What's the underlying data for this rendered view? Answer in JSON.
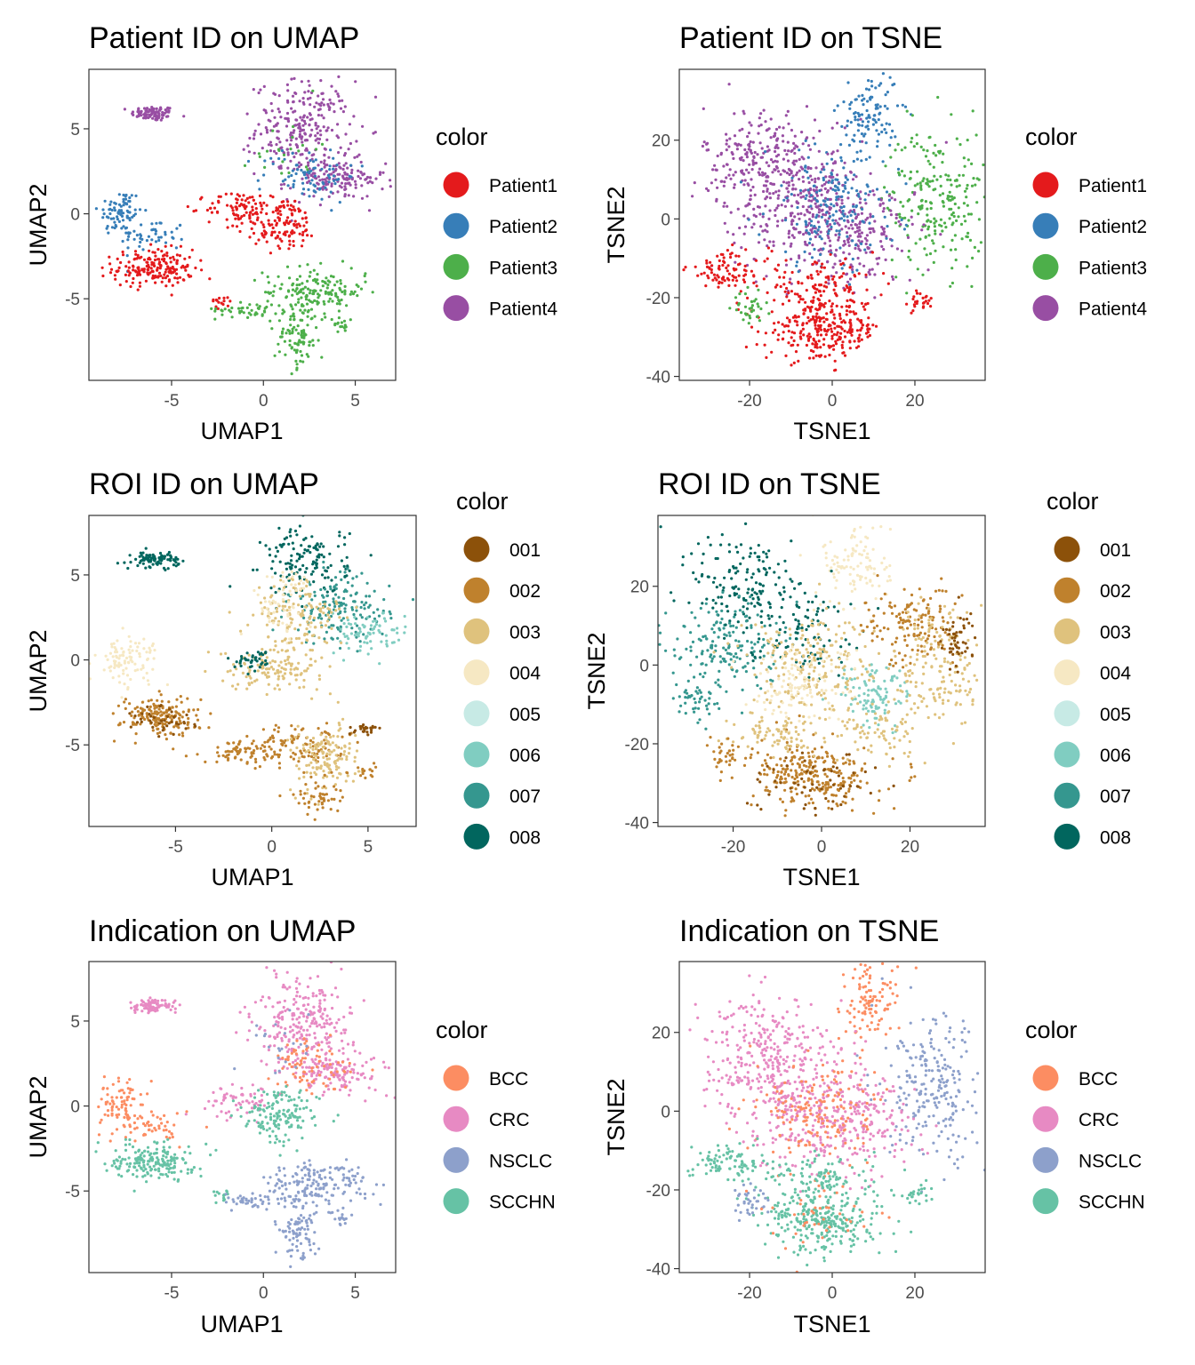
{
  "chart_data": [
    {
      "type": "scatter",
      "title": "Patient ID on UMAP",
      "xlabel": "UMAP1",
      "ylabel": "UMAP2",
      "xlim": [
        -9.5,
        7.2
      ],
      "ylim": [
        -9.8,
        8.5
      ],
      "xticks": [
        -5,
        0,
        5
      ],
      "yticks": [
        -5,
        0,
        5
      ],
      "grid": false,
      "legend": {
        "title": "color",
        "position": "right",
        "items": [
          {
            "label": "Patient1",
            "color": "#e41a1c"
          },
          {
            "label": "Patient2",
            "color": "#377eb8"
          },
          {
            "label": "Patient3",
            "color": "#4daf4a"
          },
          {
            "label": "Patient4",
            "color": "#984ea3"
          }
        ]
      },
      "clusters": [
        {
          "label": "Patient4",
          "x": -6,
          "y": 5.9,
          "sx": 0.6,
          "sy": 0.22,
          "n": 90
        },
        {
          "label": "Patient2",
          "x": -7.8,
          "y": 0.1,
          "sx": 0.6,
          "sy": 0.7,
          "n": 80
        },
        {
          "label": "Patient2",
          "x": -6,
          "y": -1.3,
          "sx": 0.9,
          "sy": 0.5,
          "n": 50
        },
        {
          "label": "Patient1",
          "x": -6,
          "y": -3.2,
          "sx": 1.1,
          "sy": 0.55,
          "n": 190
        },
        {
          "label": "Patient4",
          "x": 2.2,
          "y": 5,
          "sx": 1.3,
          "sy": 1.4,
          "n": 260
        },
        {
          "label": "Patient4",
          "x": 4,
          "y": 2,
          "sx": 1.3,
          "sy": 0.6,
          "n": 140
        },
        {
          "label": "Patient2",
          "x": 2.5,
          "y": 2.3,
          "sx": 1.3,
          "sy": 0.8,
          "n": 80
        },
        {
          "label": "Patient3",
          "x": 1.2,
          "y": 3.8,
          "sx": 0.9,
          "sy": 1,
          "n": 22
        },
        {
          "label": "Patient1",
          "x": -1.3,
          "y": 0.3,
          "sx": 0.9,
          "sy": 0.5,
          "n": 80
        },
        {
          "label": "Patient1",
          "x": 1,
          "y": -0.6,
          "sx": 1,
          "sy": 0.8,
          "n": 130
        },
        {
          "label": "Patient1",
          "x": -2.3,
          "y": -5.2,
          "sx": 0.3,
          "sy": 0.2,
          "n": 15
        },
        {
          "label": "Patient3",
          "x": -0.8,
          "y": -5.6,
          "sx": 0.9,
          "sy": 0.25,
          "n": 40
        },
        {
          "label": "Patient3",
          "x": 2.8,
          "y": -4.6,
          "sx": 1.4,
          "sy": 0.7,
          "n": 170
        },
        {
          "label": "Patient3",
          "x": 1.8,
          "y": -7.3,
          "sx": 0.6,
          "sy": 0.9,
          "n": 90
        },
        {
          "label": "Patient3",
          "x": 4.4,
          "y": -6.5,
          "sx": 0.25,
          "sy": 0.25,
          "n": 15
        }
      ]
    },
    {
      "type": "scatter",
      "title": "Patient ID on TSNE",
      "xlabel": "TSNE1",
      "ylabel": "TSNE2",
      "xlim": [
        -37,
        37
      ],
      "ylim": [
        -41,
        38
      ],
      "xticks": [
        -20,
        0,
        20
      ],
      "yticks": [
        -40,
        -20,
        0,
        20
      ],
      "grid": false,
      "legend": {
        "title": "color",
        "position": "right",
        "items": [
          {
            "label": "Patient1",
            "color": "#e41a1c"
          },
          {
            "label": "Patient2",
            "color": "#377eb8"
          },
          {
            "label": "Patient3",
            "color": "#4daf4a"
          },
          {
            "label": "Patient4",
            "color": "#984ea3"
          }
        ]
      },
      "clusters": [
        {
          "label": "Patient2",
          "x": 9,
          "y": 27,
          "sx": 3.5,
          "sy": 5.5,
          "n": 110
        },
        {
          "label": "Patient3",
          "x": 25,
          "y": 5,
          "sx": 6,
          "sy": 9,
          "n": 230
        },
        {
          "label": "Patient4",
          "x": -17,
          "y": 15,
          "sx": 7,
          "sy": 7,
          "n": 240
        },
        {
          "label": "Patient4",
          "x": -5,
          "y": 2,
          "sx": 9,
          "sy": 8,
          "n": 340
        },
        {
          "label": "Patient4",
          "x": 8,
          "y": -5,
          "sx": 6,
          "sy": 6,
          "n": 120
        },
        {
          "label": "Patient2",
          "x": 0,
          "y": 3,
          "sx": 8,
          "sy": 8,
          "n": 190
        },
        {
          "label": "Patient1",
          "x": -25,
          "y": -13,
          "sx": 5,
          "sy": 2.5,
          "n": 90
        },
        {
          "label": "Patient1",
          "x": -3,
          "y": -17,
          "sx": 7,
          "sy": 3,
          "n": 110
        },
        {
          "label": "Patient1",
          "x": -2,
          "y": -28,
          "sx": 7,
          "sy": 4,
          "n": 280
        },
        {
          "label": "Patient1",
          "x": 21,
          "y": -21,
          "sx": 2,
          "sy": 1.5,
          "n": 25
        },
        {
          "label": "Patient3",
          "x": -20,
          "y": -23,
          "sx": 1.8,
          "sy": 2,
          "n": 35
        }
      ]
    },
    {
      "type": "scatter",
      "title": "ROI ID on UMAP",
      "xlabel": "UMAP1",
      "ylabel": "UMAP2",
      "xlim": [
        -9.5,
        7.5
      ],
      "ylim": [
        -9.8,
        8.5
      ],
      "xticks": [
        -5,
        0,
        5
      ],
      "yticks": [
        -5,
        0,
        5
      ],
      "grid": false,
      "legend": {
        "title": "color",
        "position": "right",
        "items": [
          {
            "label": "001",
            "color": "#8c510a"
          },
          {
            "label": "002",
            "color": "#bf812d"
          },
          {
            "label": "003",
            "color": "#dfc27d"
          },
          {
            "label": "004",
            "color": "#f6e8c3"
          },
          {
            "label": "005",
            "color": "#c7eae5"
          },
          {
            "label": "006",
            "color": "#80cdc1"
          },
          {
            "label": "007",
            "color": "#35978f"
          },
          {
            "label": "008",
            "color": "#01665e"
          }
        ]
      },
      "clusters": [
        {
          "label": "008",
          "x": -6,
          "y": 5.9,
          "sx": 0.6,
          "sy": 0.22,
          "n": 90
        },
        {
          "label": "004",
          "x": -7.5,
          "y": 0,
          "sx": 0.8,
          "sy": 0.7,
          "n": 100
        },
        {
          "label": "002",
          "x": -5.8,
          "y": -3.3,
          "sx": 1,
          "sy": 0.6,
          "n": 170
        },
        {
          "label": "001",
          "x": -5.5,
          "y": -3.6,
          "sx": 0.9,
          "sy": 0.5,
          "n": 40
        },
        {
          "label": "008",
          "x": 1.8,
          "y": 5.8,
          "sx": 1.1,
          "sy": 1,
          "n": 140
        },
        {
          "label": "007",
          "x": 3.5,
          "y": 3,
          "sx": 1.3,
          "sy": 1,
          "n": 160
        },
        {
          "label": "006",
          "x": 5,
          "y": 1.5,
          "sx": 1,
          "sy": 0.6,
          "n": 80
        },
        {
          "label": "003",
          "x": 1.5,
          "y": 2.5,
          "sx": 1.2,
          "sy": 1.2,
          "n": 140
        },
        {
          "label": "004",
          "x": 0.5,
          "y": 3.5,
          "sx": 0.8,
          "sy": 1,
          "n": 60
        },
        {
          "label": "003",
          "x": 0,
          "y": -0.5,
          "sx": 1.3,
          "sy": 0.6,
          "n": 130
        },
        {
          "label": "008",
          "x": -0.8,
          "y": 0,
          "sx": 0.5,
          "sy": 0.3,
          "n": 40
        },
        {
          "label": "002",
          "x": -1.5,
          "y": -5.4,
          "sx": 1,
          "sy": 0.35,
          "n": 70
        },
        {
          "label": "002",
          "x": 1.5,
          "y": -5,
          "sx": 1.2,
          "sy": 0.6,
          "n": 100
        },
        {
          "label": "003",
          "x": 2.8,
          "y": -5.8,
          "sx": 0.9,
          "sy": 1,
          "n": 140
        },
        {
          "label": "002",
          "x": 2.3,
          "y": -8,
          "sx": 0.6,
          "sy": 0.5,
          "n": 50
        },
        {
          "label": "001",
          "x": 4.8,
          "y": -4.1,
          "sx": 0.4,
          "sy": 0.2,
          "n": 25
        },
        {
          "label": "002",
          "x": 4.8,
          "y": -6.6,
          "sx": 0.3,
          "sy": 0.2,
          "n": 15
        }
      ]
    },
    {
      "type": "scatter",
      "title": "ROI ID on TSNE",
      "xlabel": "TSNE1",
      "ylabel": "TSNE2",
      "xlim": [
        -37,
        37
      ],
      "ylim": [
        -41,
        38
      ],
      "xticks": [
        -20,
        0,
        20
      ],
      "yticks": [
        -40,
        -20,
        0,
        20
      ],
      "grid": false,
      "legend": {
        "title": "color",
        "position": "right",
        "items": [
          {
            "label": "001",
            "color": "#8c510a"
          },
          {
            "label": "002",
            "color": "#bf812d"
          },
          {
            "label": "003",
            "color": "#dfc27d"
          },
          {
            "label": "004",
            "color": "#f6e8c3"
          },
          {
            "label": "005",
            "color": "#c7eae5"
          },
          {
            "label": "006",
            "color": "#80cdc1"
          },
          {
            "label": "007",
            "color": "#35978f"
          },
          {
            "label": "008",
            "color": "#01665e"
          }
        ]
      },
      "clusters": [
        {
          "label": "004",
          "x": 8,
          "y": 26,
          "sx": 4,
          "sy": 6,
          "n": 110
        },
        {
          "label": "008",
          "x": -17,
          "y": 20,
          "sx": 6,
          "sy": 7,
          "n": 150
        },
        {
          "label": "007",
          "x": -22,
          "y": 5,
          "sx": 6,
          "sy": 6,
          "n": 180
        },
        {
          "label": "008",
          "x": -5,
          "y": 10,
          "sx": 6,
          "sy": 6,
          "n": 100
        },
        {
          "label": "003",
          "x": -2,
          "y": 0,
          "sx": 8,
          "sy": 7,
          "n": 220
        },
        {
          "label": "004",
          "x": -5,
          "y": -5,
          "sx": 6,
          "sy": 5,
          "n": 110
        },
        {
          "label": "006",
          "x": 12,
          "y": -8,
          "sx": 4,
          "sy": 4,
          "n": 100
        },
        {
          "label": "002",
          "x": 20,
          "y": 10,
          "sx": 5,
          "sy": 5,
          "n": 140
        },
        {
          "label": "003",
          "x": 27,
          "y": 0,
          "sx": 5,
          "sy": 9,
          "n": 170
        },
        {
          "label": "001",
          "x": 31,
          "y": 6,
          "sx": 2,
          "sy": 4,
          "n": 50
        },
        {
          "label": "002",
          "x": -2,
          "y": -28,
          "sx": 7,
          "sy": 4,
          "n": 260
        },
        {
          "label": "001",
          "x": -2,
          "y": -30,
          "sx": 7,
          "sy": 4,
          "n": 60
        },
        {
          "label": "003",
          "x": -10,
          "y": -17,
          "sx": 5,
          "sy": 2.5,
          "n": 80
        },
        {
          "label": "003",
          "x": 13,
          "y": -18,
          "sx": 5,
          "sy": 3,
          "n": 70
        },
        {
          "label": "002",
          "x": -22,
          "y": -23,
          "sx": 2,
          "sy": 2,
          "n": 30
        },
        {
          "label": "007",
          "x": -28,
          "y": -10,
          "sx": 2.5,
          "sy": 2,
          "n": 40
        }
      ]
    },
    {
      "type": "scatter",
      "title": "Indication on UMAP",
      "xlabel": "UMAP1",
      "ylabel": "UMAP2",
      "xlim": [
        -9.5,
        7.2
      ],
      "ylim": [
        -9.8,
        8.5
      ],
      "xticks": [
        -5,
        0,
        5
      ],
      "yticks": [
        -5,
        0,
        5
      ],
      "grid": false,
      "legend": {
        "title": "color",
        "position": "right",
        "items": [
          {
            "label": "BCC",
            "color": "#fc8d62"
          },
          {
            "label": "CRC",
            "color": "#e78ac3"
          },
          {
            "label": "NSCLC",
            "color": "#8da0cb"
          },
          {
            "label": "SCCHN",
            "color": "#66c2a5"
          }
        ]
      },
      "clusters": [
        {
          "label": "CRC",
          "x": -6,
          "y": 5.9,
          "sx": 0.6,
          "sy": 0.22,
          "n": 90
        },
        {
          "label": "BCC",
          "x": -7.8,
          "y": 0.1,
          "sx": 0.6,
          "sy": 0.7,
          "n": 80
        },
        {
          "label": "BCC",
          "x": -6,
          "y": -1.3,
          "sx": 0.9,
          "sy": 0.5,
          "n": 50
        },
        {
          "label": "SCCHN",
          "x": -6,
          "y": -3.2,
          "sx": 1.1,
          "sy": 0.55,
          "n": 190
        },
        {
          "label": "CRC",
          "x": 2.2,
          "y": 5,
          "sx": 1.3,
          "sy": 1.4,
          "n": 260
        },
        {
          "label": "CRC",
          "x": 4,
          "y": 2,
          "sx": 1.3,
          "sy": 0.6,
          "n": 140
        },
        {
          "label": "BCC",
          "x": 2.5,
          "y": 2.3,
          "sx": 1.3,
          "sy": 0.8,
          "n": 80
        },
        {
          "label": "NSCLC",
          "x": 1.2,
          "y": 3.8,
          "sx": 0.9,
          "sy": 1,
          "n": 22
        },
        {
          "label": "CRC",
          "x": -1.3,
          "y": 0.3,
          "sx": 0.9,
          "sy": 0.5,
          "n": 60
        },
        {
          "label": "SCCHN",
          "x": 1,
          "y": -0.6,
          "sx": 1,
          "sy": 0.8,
          "n": 150
        },
        {
          "label": "SCCHN",
          "x": -2.3,
          "y": -5.2,
          "sx": 0.3,
          "sy": 0.2,
          "n": 15
        },
        {
          "label": "NSCLC",
          "x": -0.8,
          "y": -5.6,
          "sx": 0.9,
          "sy": 0.25,
          "n": 40
        },
        {
          "label": "NSCLC",
          "x": 2.8,
          "y": -4.6,
          "sx": 1.4,
          "sy": 0.7,
          "n": 170
        },
        {
          "label": "NSCLC",
          "x": 1.8,
          "y": -7.3,
          "sx": 0.6,
          "sy": 0.9,
          "n": 90
        },
        {
          "label": "NSCLC",
          "x": 4.4,
          "y": -6.5,
          "sx": 0.25,
          "sy": 0.25,
          "n": 15
        }
      ]
    },
    {
      "type": "scatter",
      "title": "Indication on TSNE",
      "xlabel": "TSNE1",
      "ylabel": "TSNE2",
      "xlim": [
        -37,
        37
      ],
      "ylim": [
        -41,
        38
      ],
      "xticks": [
        -20,
        0,
        20
      ],
      "yticks": [
        -40,
        -20,
        0,
        20
      ],
      "grid": false,
      "legend": {
        "title": "color",
        "position": "right",
        "items": [
          {
            "label": "BCC",
            "color": "#fc8d62"
          },
          {
            "label": "CRC",
            "color": "#e78ac3"
          },
          {
            "label": "NSCLC",
            "color": "#8da0cb"
          },
          {
            "label": "SCCHN",
            "color": "#66c2a5"
          }
        ]
      },
      "clusters": [
        {
          "label": "BCC",
          "x": 9,
          "y": 27,
          "sx": 3.5,
          "sy": 5.5,
          "n": 110
        },
        {
          "label": "NSCLC",
          "x": 25,
          "y": 5,
          "sx": 6,
          "sy": 9,
          "n": 230
        },
        {
          "label": "CRC",
          "x": -17,
          "y": 15,
          "sx": 7,
          "sy": 7,
          "n": 240
        },
        {
          "label": "CRC",
          "x": -5,
          "y": 2,
          "sx": 9,
          "sy": 8,
          "n": 340
        },
        {
          "label": "CRC",
          "x": 8,
          "y": -5,
          "sx": 6,
          "sy": 6,
          "n": 120
        },
        {
          "label": "BCC",
          "x": -3,
          "y": 0,
          "sx": 7,
          "sy": 7,
          "n": 170
        },
        {
          "label": "SCCHN",
          "x": -25,
          "y": -13,
          "sx": 5,
          "sy": 2.5,
          "n": 90
        },
        {
          "label": "SCCHN",
          "x": -3,
          "y": -17,
          "sx": 7,
          "sy": 3,
          "n": 110
        },
        {
          "label": "SCCHN",
          "x": -2,
          "y": -28,
          "sx": 7,
          "sy": 4,
          "n": 280
        },
        {
          "label": "SCCHN",
          "x": 21,
          "y": -21,
          "sx": 2,
          "sy": 1.5,
          "n": 25
        },
        {
          "label": "NSCLC",
          "x": -20,
          "y": -23,
          "sx": 1.8,
          "sy": 2,
          "n": 35
        },
        {
          "label": "BCC",
          "x": -2,
          "y": -26,
          "sx": 6,
          "sy": 4,
          "n": 40
        }
      ]
    }
  ]
}
